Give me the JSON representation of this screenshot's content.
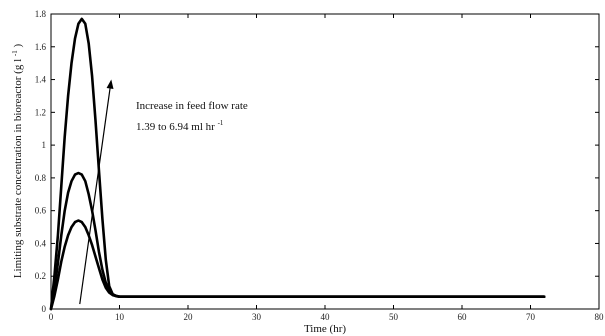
{
  "chart_data": {
    "type": "line",
    "xlabel": "Time (hr)",
    "ylabel": "Limiting substrate concentration in bioreactor (g l",
    "ylabel_sup": "-1",
    "ylabel_close": ")",
    "xlim": [
      0,
      80
    ],
    "ylim": [
      0,
      1.8
    ],
    "x_ticks": [
      0,
      10,
      20,
      30,
      40,
      50,
      60,
      70,
      80
    ],
    "y_ticks": [
      0,
      0.2,
      0.4,
      0.6,
      0.8,
      1,
      1.2,
      1.4,
      1.6,
      1.8
    ],
    "y_tick_labels": [
      "0",
      "0.2",
      "0.4",
      "0.6",
      "0.8",
      "1",
      "1.2",
      "1.4",
      "1.6",
      "1.8"
    ],
    "grid": false,
    "series": [
      {
        "x": [
          0,
          0.5,
          1,
          1.5,
          2,
          2.5,
          3,
          3.5,
          4,
          4.5,
          5,
          5.5,
          6,
          6.5,
          7,
          7.5,
          8,
          8.5,
          9,
          9.5,
          10,
          12,
          15,
          20,
          30,
          40,
          50,
          60,
          72
        ],
        "y": [
          0,
          0.2,
          0.45,
          0.75,
          1.05,
          1.3,
          1.5,
          1.65,
          1.74,
          1.77,
          1.74,
          1.62,
          1.42,
          1.15,
          0.85,
          0.55,
          0.3,
          0.14,
          0.09,
          0.08,
          0.075,
          0.075,
          0.075,
          0.075,
          0.075,
          0.075,
          0.075,
          0.075,
          0.075
        ]
      },
      {
        "x": [
          0,
          0.5,
          1,
          1.5,
          2,
          2.5,
          3,
          3.5,
          4,
          4.5,
          5,
          5.5,
          6,
          6.5,
          7,
          7.5,
          8,
          8.5,
          9,
          9.5,
          10,
          12,
          15,
          20,
          30,
          40,
          50,
          60,
          72
        ],
        "y": [
          0,
          0.12,
          0.28,
          0.45,
          0.6,
          0.71,
          0.78,
          0.82,
          0.83,
          0.82,
          0.78,
          0.7,
          0.6,
          0.48,
          0.35,
          0.24,
          0.16,
          0.11,
          0.09,
          0.08,
          0.075,
          0.075,
          0.075,
          0.075,
          0.075,
          0.075,
          0.075,
          0.075,
          0.075
        ]
      },
      {
        "x": [
          0,
          0.5,
          1,
          1.5,
          2,
          2.5,
          3,
          3.5,
          4,
          4.5,
          5,
          5.5,
          6,
          6.5,
          7,
          7.5,
          8,
          8.5,
          9,
          9.5,
          10,
          12,
          15,
          20,
          30,
          40,
          50,
          60,
          72
        ],
        "y": [
          0,
          0.08,
          0.18,
          0.29,
          0.38,
          0.45,
          0.5,
          0.53,
          0.54,
          0.53,
          0.5,
          0.45,
          0.39,
          0.32,
          0.25,
          0.18,
          0.13,
          0.1,
          0.085,
          0.078,
          0.075,
          0.075,
          0.075,
          0.075,
          0.075,
          0.075,
          0.075,
          0.075,
          0.075
        ]
      }
    ],
    "annotation": {
      "line1": "Increase in feed flow rate",
      "line2": "1.39 to 6.94 ml hr",
      "line2_sup": "-1",
      "arrow_from": [
        4.2,
        0.03
      ],
      "arrow_to": [
        8.8,
        1.4
      ]
    }
  }
}
